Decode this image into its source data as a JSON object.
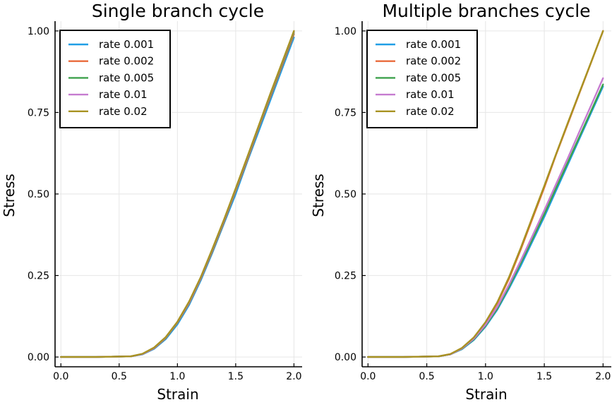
{
  "chart_data": [
    {
      "type": "line",
      "title": "Single branch cycle",
      "xlabel": "Strain",
      "ylabel": "Stress",
      "xlim": [
        -0.05,
        2.07
      ],
      "ylim": [
        -0.03,
        1.03
      ],
      "xticks": [
        0.0,
        0.5,
        1.0,
        1.5,
        2.0
      ],
      "xtick_labels": [
        "0.0",
        "0.5",
        "1.0",
        "1.5",
        "2.0"
      ],
      "yticks": [
        0.0,
        0.25,
        0.5,
        0.75,
        1.0
      ],
      "ytick_labels": [
        "0.00",
        "0.25",
        "0.50",
        "0.75",
        "1.00"
      ],
      "grid": true,
      "legend_position": "top-left",
      "series": [
        {
          "name": "rate 0.001",
          "color": "#1f9ee5",
          "x": [
            0,
            0.3,
            0.6,
            0.7,
            0.8,
            0.9,
            1.0,
            1.1,
            1.2,
            1.3,
            1.4,
            1.5,
            1.6,
            1.7,
            1.8,
            1.9,
            2.0
          ],
          "y": [
            0,
            0.0,
            0.002,
            0.008,
            0.025,
            0.055,
            0.1,
            0.16,
            0.235,
            0.32,
            0.41,
            0.5,
            0.6,
            0.695,
            0.79,
            0.885,
            0.98
          ]
        },
        {
          "name": "rate 0.002",
          "color": "#e96a3a",
          "x": [
            0,
            0.3,
            0.6,
            0.7,
            0.8,
            0.9,
            1.0,
            1.1,
            1.2,
            1.3,
            1.4,
            1.5,
            1.6,
            1.7,
            1.8,
            1.9,
            2.0
          ],
          "y": [
            0,
            0.0,
            0.002,
            0.009,
            0.027,
            0.058,
            0.105,
            0.165,
            0.24,
            0.325,
            0.415,
            0.51,
            0.605,
            0.705,
            0.8,
            0.895,
            0.99
          ]
        },
        {
          "name": "rate 0.005",
          "color": "#3da14c",
          "x": [
            0,
            0.3,
            0.6,
            0.7,
            0.8,
            0.9,
            1.0,
            1.1,
            1.2,
            1.3,
            1.4,
            1.5,
            1.6,
            1.7,
            1.8,
            1.9,
            2.0
          ],
          "y": [
            0,
            0.0,
            0.002,
            0.009,
            0.028,
            0.059,
            0.106,
            0.167,
            0.242,
            0.328,
            0.418,
            0.513,
            0.61,
            0.708,
            0.805,
            0.9,
            0.995
          ]
        },
        {
          "name": "rate 0.01",
          "color": "#c67bd0",
          "x": [
            0,
            0.3,
            0.6,
            0.7,
            0.8,
            0.9,
            1.0,
            1.1,
            1.2,
            1.3,
            1.4,
            1.5,
            1.6,
            1.7,
            1.8,
            1.9,
            2.0
          ],
          "y": [
            0,
            0.0,
            0.002,
            0.009,
            0.028,
            0.06,
            0.107,
            0.168,
            0.243,
            0.33,
            0.42,
            0.515,
            0.612,
            0.71,
            0.808,
            0.903,
            0.998
          ]
        },
        {
          "name": "rate 0.02",
          "color": "#a89322",
          "x": [
            0,
            0.3,
            0.6,
            0.7,
            0.8,
            0.9,
            1.0,
            1.1,
            1.2,
            1.3,
            1.4,
            1.5,
            1.6,
            1.7,
            1.8,
            1.9,
            2.0
          ],
          "y": [
            0,
            0.0,
            0.002,
            0.01,
            0.029,
            0.061,
            0.108,
            0.17,
            0.245,
            0.332,
            0.422,
            0.517,
            0.614,
            0.712,
            0.81,
            0.905,
            1.0
          ]
        }
      ]
    },
    {
      "type": "line",
      "title": "Multiple branches cycle",
      "xlabel": "Strain",
      "ylabel": "Stress",
      "xlim": [
        -0.05,
        2.07
      ],
      "ylim": [
        -0.03,
        1.03
      ],
      "xticks": [
        0.0,
        0.5,
        1.0,
        1.5,
        2.0
      ],
      "xtick_labels": [
        "0.0",
        "0.5",
        "1.0",
        "1.5",
        "2.0"
      ],
      "yticks": [
        0.0,
        0.25,
        0.5,
        0.75,
        1.0
      ],
      "ytick_labels": [
        "0.00",
        "0.25",
        "0.50",
        "0.75",
        "1.00"
      ],
      "grid": true,
      "legend_position": "top-left",
      "series": [
        {
          "name": "rate 0.001",
          "color": "#1f9ee5",
          "x": [
            0,
            0.3,
            0.6,
            0.7,
            0.8,
            0.9,
            1.0,
            1.1,
            1.2,
            1.3,
            1.4,
            1.5,
            1.6,
            1.7,
            1.8,
            1.9,
            2.0
          ],
          "y": [
            0,
            0.0,
            0.002,
            0.008,
            0.024,
            0.052,
            0.093,
            0.145,
            0.21,
            0.28,
            0.355,
            0.43,
            0.51,
            0.59,
            0.67,
            0.75,
            0.83
          ]
        },
        {
          "name": "rate 0.002",
          "color": "#e96a3a",
          "x": [
            0,
            0.3,
            0.6,
            0.7,
            0.8,
            0.9,
            1.0,
            1.1,
            1.2,
            1.3,
            1.4,
            1.5,
            1.6,
            1.7,
            1.8,
            1.9,
            2.0
          ],
          "y": [
            0,
            0.0,
            0.002,
            0.009,
            0.027,
            0.058,
            0.105,
            0.165,
            0.24,
            0.33,
            0.425,
            0.52,
            0.62,
            0.715,
            0.81,
            0.905,
            1.0
          ]
        },
        {
          "name": "rate 0.005",
          "color": "#3da14c",
          "x": [
            0,
            0.3,
            0.6,
            0.7,
            0.8,
            0.9,
            1.0,
            1.1,
            1.2,
            1.3,
            1.4,
            1.5,
            1.6,
            1.7,
            1.8,
            1.9,
            2.0
          ],
          "y": [
            0,
            0.0,
            0.002,
            0.008,
            0.025,
            0.054,
            0.096,
            0.149,
            0.215,
            0.288,
            0.362,
            0.438,
            0.518,
            0.597,
            0.676,
            0.756,
            0.836
          ]
        },
        {
          "name": "rate 0.01",
          "color": "#c67bd0",
          "x": [
            0,
            0.3,
            0.6,
            0.7,
            0.8,
            0.9,
            1.0,
            1.1,
            1.2,
            1.3,
            1.4,
            1.5,
            1.6,
            1.7,
            1.8,
            1.9,
            2.0
          ],
          "y": [
            0,
            0.0,
            0.002,
            0.008,
            0.026,
            0.056,
            0.099,
            0.154,
            0.222,
            0.296,
            0.372,
            0.45,
            0.53,
            0.61,
            0.692,
            0.773,
            0.855
          ]
        },
        {
          "name": "rate 0.02",
          "color": "#a89322",
          "x": [
            0,
            0.3,
            0.6,
            0.7,
            0.8,
            0.9,
            1.0,
            1.1,
            1.2,
            1.3,
            1.4,
            1.5,
            1.6,
            1.7,
            1.8,
            1.9,
            2.0
          ],
          "y": [
            0,
            0.0,
            0.002,
            0.009,
            0.028,
            0.06,
            0.107,
            0.168,
            0.245,
            0.335,
            0.43,
            0.525,
            0.622,
            0.718,
            0.812,
            0.906,
            1.0
          ]
        }
      ]
    }
  ]
}
